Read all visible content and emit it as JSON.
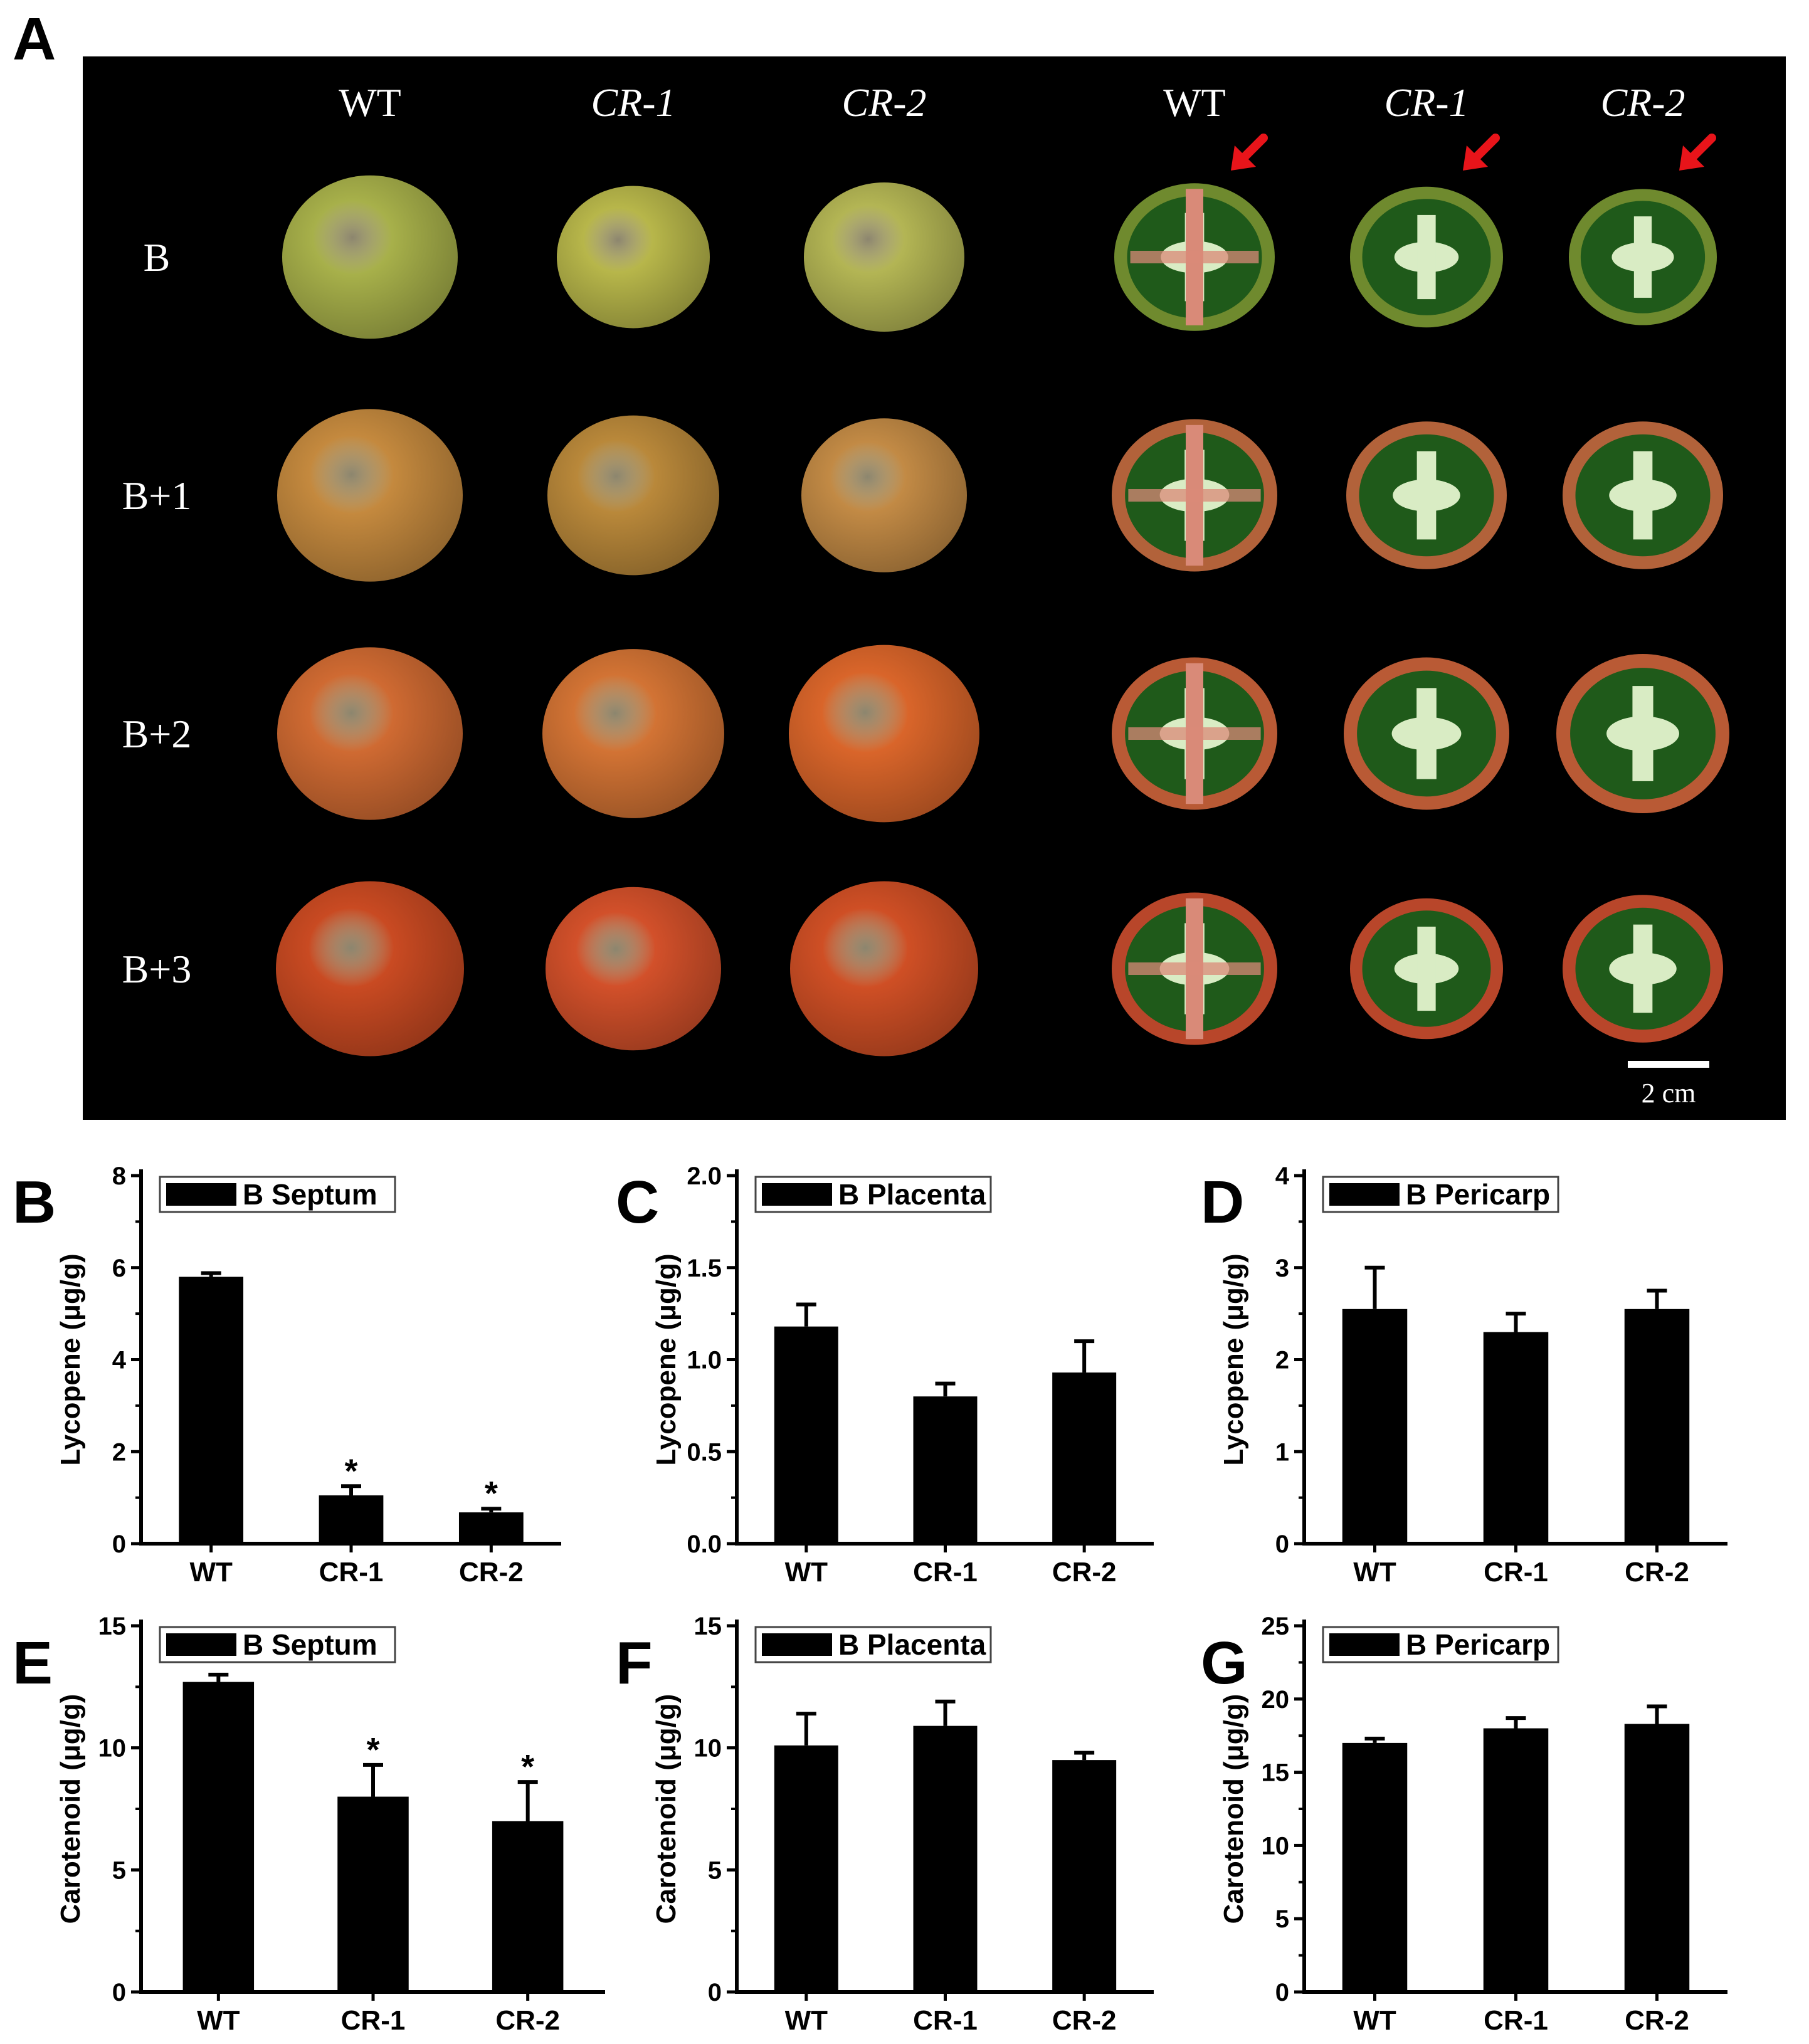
{
  "figure": {
    "panel_a": {
      "letter": "A",
      "column_labels": [
        "WT",
        "CR-1",
        "CR-2",
        "WT",
        "CR-1",
        "CR-2"
      ],
      "row_labels": [
        "B",
        "B+1",
        "B+2",
        "B+3"
      ],
      "scale_bar": "2 cm",
      "fruit_colors": [
        [
          "#a7b04a",
          "#b7b64a",
          "#b3b554"
        ],
        [
          "#c4893e",
          "#b9883a",
          "#c28a45"
        ],
        [
          "#cf6a32",
          "#d27334",
          "#d9652a"
        ],
        [
          "#c94a22",
          "#d2502a",
          "#cf4f25"
        ]
      ],
      "section_colors": {
        "flesh": [
          "#6f8a2e",
          "#b2623a",
          "#b95a35",
          "#b8462a"
        ],
        "locule": "#1f5a1a",
        "core": "#d9ecc4",
        "septum_wt": "#d98a78"
      },
      "arrow_color": "#e8141a"
    }
  },
  "chart_data": [
    {
      "letter": "B",
      "type": "bar",
      "legend": "B Septum",
      "ylabel": "Lycopene (μg/g)",
      "categories": [
        "WT",
        "CR-1",
        "CR-2"
      ],
      "values": [
        5.8,
        1.05,
        0.68
      ],
      "errors": [
        0.08,
        0.2,
        0.08
      ],
      "significance": [
        "",
        "*",
        "*"
      ],
      "ylim": [
        0,
        8
      ],
      "yticks": [
        0,
        2,
        4,
        6,
        8
      ],
      "tick_labels": [
        "0",
        "2",
        "4",
        "6",
        "8"
      ]
    },
    {
      "letter": "C",
      "type": "bar",
      "legend": "B Placenta",
      "ylabel": "Lycopene (μg/g)",
      "categories": [
        "WT",
        "CR-1",
        "CR-2"
      ],
      "values": [
        1.18,
        0.8,
        0.93
      ],
      "errors": [
        0.12,
        0.07,
        0.17
      ],
      "significance": [
        "",
        "",
        ""
      ],
      "ylim": [
        0,
        2.0
      ],
      "yticks": [
        0,
        0.5,
        1.0,
        1.5,
        2.0
      ],
      "tick_labels": [
        "0.0",
        "0.5",
        "1.0",
        "1.5",
        "2.0"
      ]
    },
    {
      "letter": "D",
      "type": "bar",
      "legend": "B Pericarp",
      "ylabel": "Lycopene (μg/g)",
      "categories": [
        "WT",
        "CR-1",
        "CR-2"
      ],
      "values": [
        2.55,
        2.3,
        2.55
      ],
      "errors": [
        0.45,
        0.2,
        0.2
      ],
      "significance": [
        "",
        "",
        ""
      ],
      "ylim": [
        0,
        4
      ],
      "yticks": [
        0,
        1,
        2,
        3,
        4
      ],
      "tick_labels": [
        "0",
        "1",
        "2",
        "3",
        "4"
      ]
    },
    {
      "letter": "E",
      "type": "bar",
      "legend": "B Septum",
      "ylabel": "Carotenoid (μg/g)",
      "categories": [
        "WT",
        "CR-1",
        "CR-2"
      ],
      "values": [
        12.7,
        8.0,
        7.0
      ],
      "errors": [
        0.3,
        1.3,
        1.6
      ],
      "significance": [
        "",
        "*",
        "*"
      ],
      "ylim": [
        0,
        15
      ],
      "yticks": [
        0,
        5,
        10,
        15
      ],
      "tick_labels": [
        "0",
        "5",
        "10",
        "15"
      ]
    },
    {
      "letter": "F",
      "type": "bar",
      "legend": "B Placenta",
      "ylabel": "Carotenoid (μg/g)",
      "categories": [
        "WT",
        "CR-1",
        "CR-2"
      ],
      "values": [
        10.1,
        10.9,
        9.5
      ],
      "errors": [
        1.3,
        1.0,
        0.3
      ],
      "significance": [
        "",
        "",
        ""
      ],
      "ylim": [
        0,
        15
      ],
      "yticks": [
        0,
        5,
        10,
        15
      ],
      "tick_labels": [
        "0",
        "5",
        "10",
        "15"
      ]
    },
    {
      "letter": "G",
      "type": "bar",
      "legend": "B Pericarp",
      "ylabel": "Carotenoid (μg/g)",
      "categories": [
        "WT",
        "CR-1",
        "CR-2"
      ],
      "values": [
        17.0,
        18.0,
        18.3
      ],
      "errors": [
        0.3,
        0.7,
        1.2
      ],
      "significance": [
        "",
        "",
        ""
      ],
      "ylim": [
        0,
        25
      ],
      "yticks": [
        0,
        5,
        10,
        15,
        20,
        25
      ],
      "tick_labels": [
        "0",
        "5",
        "10",
        "15",
        "20",
        "25"
      ]
    }
  ]
}
